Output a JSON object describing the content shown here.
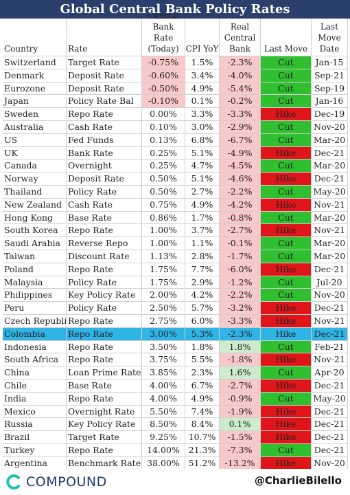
{
  "title": "Global Central Bank Policy Rates",
  "columns": [
    {
      "key": "country",
      "label": "Country"
    },
    {
      "key": "rate_name",
      "label": "Rate"
    },
    {
      "key": "rate",
      "label": "Central Bank Rate (Today)"
    },
    {
      "key": "cpi",
      "label": "CPI YoY"
    },
    {
      "key": "real",
      "label": "Real Central Bank"
    },
    {
      "key": "move",
      "label": "Last Move"
    },
    {
      "key": "date",
      "label": "Last Move Date"
    }
  ],
  "chart_data": {
    "type": "table",
    "highlight_row": "Colombia",
    "rows": [
      {
        "country": "Switzerland",
        "rate_name": "Target Rate",
        "rate": "-0.75%",
        "cpi": "1.5%",
        "real": "-2.3%",
        "move": "Cut",
        "date": "Jan-15"
      },
      {
        "country": "Denmark",
        "rate_name": "Deposit Rate",
        "rate": "-0.60%",
        "cpi": "3.4%",
        "real": "-4.0%",
        "move": "Cut",
        "date": "Sep-21"
      },
      {
        "country": "Eurozone",
        "rate_name": "Deposit Rate",
        "rate": "-0.50%",
        "cpi": "4.9%",
        "real": "-5.4%",
        "move": "Cut",
        "date": "Sep-19"
      },
      {
        "country": "Japan",
        "rate_name": "Policy Rate Bal",
        "rate": "-0.10%",
        "cpi": "0.1%",
        "real": "-0.2%",
        "move": "Cut",
        "date": "Jan-16"
      },
      {
        "country": "Sweden",
        "rate_name": "Repo Rate",
        "rate": "0.00%",
        "cpi": "3.3%",
        "real": "-3.3%",
        "move": "Hike",
        "date": "Dec-19"
      },
      {
        "country": "Australia",
        "rate_name": "Cash Rate",
        "rate": "0.10%",
        "cpi": "3.0%",
        "real": "-2.9%",
        "move": "Cut",
        "date": "Nov-20"
      },
      {
        "country": "US",
        "rate_name": "Fed Funds",
        "rate": "0.13%",
        "cpi": "6.8%",
        "real": "-6.7%",
        "move": "Cut",
        "date": "Mar-20"
      },
      {
        "country": "UK",
        "rate_name": "Bank Rate",
        "rate": "0.25%",
        "cpi": "5.1%",
        "real": "-4.9%",
        "move": "Hike",
        "date": "Dec-21"
      },
      {
        "country": "Canada",
        "rate_name": "Overnight",
        "rate": "0.25%",
        "cpi": "4.7%",
        "real": "-4.5%",
        "move": "Cut",
        "date": "Mar-20"
      },
      {
        "country": "Norway",
        "rate_name": "Deposit Rate",
        "rate": "0.50%",
        "cpi": "5.1%",
        "real": "-4.6%",
        "move": "Hike",
        "date": "Dec-21"
      },
      {
        "country": "Thailand",
        "rate_name": "Policy Rate",
        "rate": "0.50%",
        "cpi": "2.7%",
        "real": "-2.2%",
        "move": "Cut",
        "date": "May-20"
      },
      {
        "country": "New Zealand",
        "rate_name": "Cash Rate",
        "rate": "0.75%",
        "cpi": "4.9%",
        "real": "-4.2%",
        "move": "Hike",
        "date": "Nov-21"
      },
      {
        "country": "Hong Kong",
        "rate_name": "Base Rate",
        "rate": "0.86%",
        "cpi": "1.7%",
        "real": "-0.8%",
        "move": "Cut",
        "date": "Mar-20"
      },
      {
        "country": "South Korea",
        "rate_name": "Repo Rate",
        "rate": "1.00%",
        "cpi": "3.7%",
        "real": "-2.7%",
        "move": "Hike",
        "date": "Nov-21"
      },
      {
        "country": "Saudi Arabia",
        "rate_name": "Reverse Repo",
        "rate": "1.00%",
        "cpi": "1.1%",
        "real": "-0.1%",
        "move": "Cut",
        "date": "Mar-20"
      },
      {
        "country": "Taiwan",
        "rate_name": "Discount Rate",
        "rate": "1.13%",
        "cpi": "2.8%",
        "real": "-1.7%",
        "move": "Cut",
        "date": "Mar-20"
      },
      {
        "country": "Poland",
        "rate_name": "Repo Rate",
        "rate": "1.75%",
        "cpi": "7.7%",
        "real": "-6.0%",
        "move": "Hike",
        "date": "Dec-21"
      },
      {
        "country": "Malaysia",
        "rate_name": "Policy Rate",
        "rate": "1.75%",
        "cpi": "2.9%",
        "real": "-1.2%",
        "move": "Cut",
        "date": "Jul-20"
      },
      {
        "country": "Philippines",
        "rate_name": "Key Policy Rate",
        "rate": "2.00%",
        "cpi": "4.2%",
        "real": "-2.2%",
        "move": "Cut",
        "date": "Nov-20"
      },
      {
        "country": "Peru",
        "rate_name": "Policy Rate",
        "rate": "2.50%",
        "cpi": "5.7%",
        "real": "-3.2%",
        "move": "Hike",
        "date": "Dec-21"
      },
      {
        "country": "Czech Republic",
        "rate_name": "Repo Rate",
        "rate": "2.75%",
        "cpi": "6.0%",
        "real": "-3.3%",
        "move": "Hike",
        "date": "Nov-21"
      },
      {
        "country": "Colombia",
        "rate_name": "Repo Rate",
        "rate": "3.00%",
        "cpi": "5.3%",
        "real": "-2.3%",
        "move": "Hike",
        "date": "Dec-21"
      },
      {
        "country": "Indonesia",
        "rate_name": "Repo Rate",
        "rate": "3.50%",
        "cpi": "1.8%",
        "real": "1.8%",
        "move": "Cut",
        "date": "Feb-21"
      },
      {
        "country": "South Africa",
        "rate_name": "Repo Rate",
        "rate": "3.75%",
        "cpi": "5.5%",
        "real": "-1.8%",
        "move": "Hike",
        "date": "Nov-21"
      },
      {
        "country": "China",
        "rate_name": "Loan Prime Rate",
        "rate": "3.85%",
        "cpi": "2.3%",
        "real": "1.6%",
        "move": "Cut",
        "date": "Apr-20"
      },
      {
        "country": "Chile",
        "rate_name": "Base Rate",
        "rate": "4.00%",
        "cpi": "6.7%",
        "real": "-2.7%",
        "move": "Hike",
        "date": "Dec-21"
      },
      {
        "country": "India",
        "rate_name": "Repo Rate",
        "rate": "4.00%",
        "cpi": "4.9%",
        "real": "-0.9%",
        "move": "Cut",
        "date": "May-20"
      },
      {
        "country": "Mexico",
        "rate_name": "Overnight Rate",
        "rate": "5.50%",
        "cpi": "7.4%",
        "real": "-1.9%",
        "move": "Hike",
        "date": "Dec-21"
      },
      {
        "country": "Russia",
        "rate_name": "Key Policy Rate",
        "rate": "8.50%",
        "cpi": "8.4%",
        "real": "0.1%",
        "move": "Hike",
        "date": "Dec-21"
      },
      {
        "country": "Brazil",
        "rate_name": "Target Rate",
        "rate": "9.25%",
        "cpi": "10.7%",
        "real": "-1.5%",
        "move": "Hike",
        "date": "Dec-21"
      },
      {
        "country": "Turkey",
        "rate_name": "Repo Rate",
        "rate": "14.00%",
        "cpi": "21.3%",
        "real": "-7.3%",
        "move": "Cut",
        "date": "Dec-21"
      },
      {
        "country": "Argentina",
        "rate_name": "Benchmark Rate",
        "rate": "38.00%",
        "cpi": "51.2%",
        "real": "-13.2%",
        "move": "Hike",
        "date": "Nov-20"
      }
    ]
  },
  "footer": {
    "logo_text": "COMPOUND",
    "handle": "@CharlieBilello"
  },
  "colors": {
    "title_bg": "#2b3f6c",
    "negative_fill": "#f9c9c9",
    "positive_fill": "#cdeccd",
    "cut": "#2fbf2f",
    "hike": "#e0151a",
    "highlight": "#2fb4e6"
  }
}
